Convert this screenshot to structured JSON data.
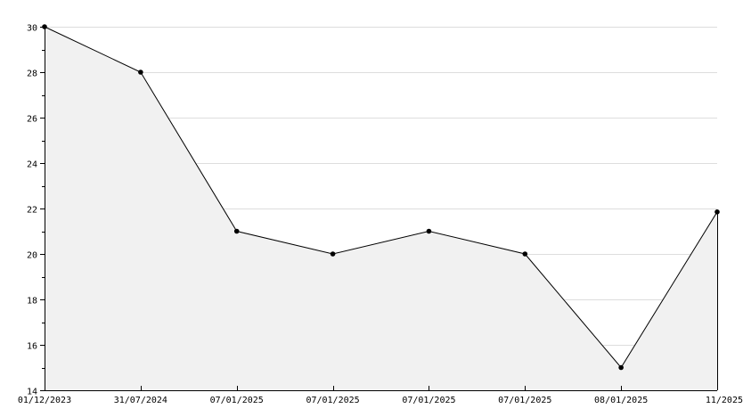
{
  "chart_data": {
    "type": "area",
    "title": "",
    "xlabel": "",
    "ylabel": "",
    "categories": [
      "01/12/2023",
      "31/07/2024",
      "07/01/2025",
      "07/01/2025",
      "07/01/2025",
      "07/01/2025",
      "08/01/2025",
      "11/2025"
    ],
    "values": [
      30,
      28,
      21,
      20,
      21,
      20,
      15,
      21.85
    ],
    "ylim": [
      14,
      30
    ],
    "yticks": [
      14,
      16,
      18,
      20,
      22,
      24,
      26,
      28,
      30
    ],
    "grid": true,
    "colors": {
      "fill": "#f1f1f1",
      "line": "#000000",
      "grid": "#dddddd",
      "marker": "#000000"
    }
  }
}
